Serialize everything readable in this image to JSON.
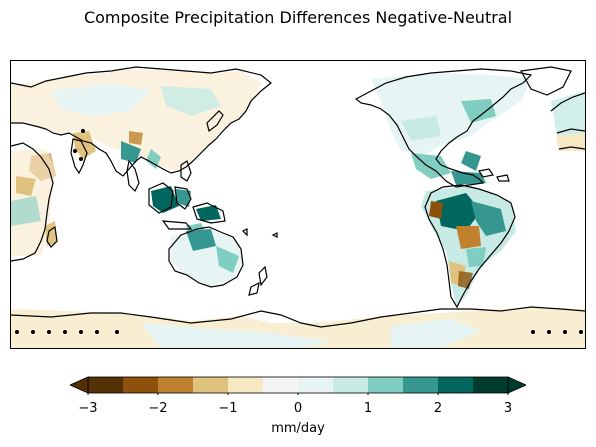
{
  "figure": {
    "title": "Composite Precipitation Differences Negative-Neutral"
  },
  "colorbar": {
    "label": "mm/day",
    "ticks": [
      "−3",
      "−2",
      "−1",
      "0",
      "1",
      "2",
      "3"
    ],
    "range": [
      -3,
      3
    ],
    "extend": "both",
    "colors": [
      "#543005",
      "#8c510a",
      "#bf812d",
      "#dfc27d",
      "#f6e8c3",
      "#f5f5f5",
      "#e6f5f3",
      "#c7eae5",
      "#80cdc1",
      "#35978f",
      "#01665e",
      "#003c30"
    ]
  },
  "map": {
    "projection": "PlateCarree",
    "central_longitude": 180,
    "coastline_color": "#000000",
    "significance_marker": "black dots"
  }
}
